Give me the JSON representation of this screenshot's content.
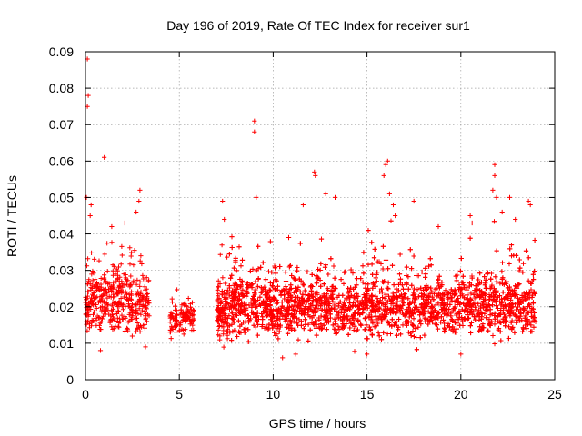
{
  "chart_data": {
    "type": "scatter",
    "title": "Day 196 of 2019, Rate Of TEC Index for receiver sur1",
    "xlabel": "GPS time / hours",
    "ylabel": "ROTI / TECUs",
    "xlim": [
      0,
      25
    ],
    "ylim": [
      0,
      0.09
    ],
    "x_ticks": [
      "0",
      "5",
      "10",
      "15",
      "20",
      "25"
    ],
    "y_ticks": [
      "0",
      "0.01",
      "0.02",
      "0.03",
      "0.04",
      "0.05",
      "0.06",
      "0.07",
      "0.08",
      "0.09"
    ],
    "grid": true,
    "marker": "+",
    "color": "#ff0000",
    "clusters": [
      {
        "x_range": [
          0.0,
          3.4
        ],
        "y_center": 0.021,
        "y_spread": 0.007,
        "count": 420
      },
      {
        "x_range": [
          4.5,
          4.9
        ],
        "y_center": 0.016,
        "y_spread": 0.004,
        "count": 45
      },
      {
        "x_range": [
          5.0,
          5.8
        ],
        "y_center": 0.017,
        "y_spread": 0.004,
        "count": 80
      },
      {
        "x_range": [
          7.0,
          7.6
        ],
        "y_center": 0.019,
        "y_spread": 0.006,
        "count": 120
      },
      {
        "x_range": [
          7.6,
          24.0
        ],
        "y_center": 0.02,
        "y_spread": 0.007,
        "count": 3600
      }
    ],
    "outliers": [
      [
        0.1,
        0.088
      ],
      [
        0.15,
        0.078
      ],
      [
        0.1,
        0.075
      ],
      [
        0.05,
        0.05
      ],
      [
        0.3,
        0.048
      ],
      [
        0.25,
        0.045
      ],
      [
        1.0,
        0.061
      ],
      [
        2.9,
        0.052
      ],
      [
        2.85,
        0.049
      ],
      [
        2.7,
        0.046
      ],
      [
        2.1,
        0.043
      ],
      [
        1.4,
        0.042
      ],
      [
        9.0,
        0.071
      ],
      [
        9.0,
        0.068
      ],
      [
        9.1,
        0.05
      ],
      [
        7.3,
        0.049
      ],
      [
        7.4,
        0.044
      ],
      [
        12.2,
        0.057
      ],
      [
        12.25,
        0.056
      ],
      [
        12.8,
        0.051
      ],
      [
        13.3,
        0.05
      ],
      [
        11.6,
        0.048
      ],
      [
        16.1,
        0.06
      ],
      [
        16.0,
        0.059
      ],
      [
        15.9,
        0.056
      ],
      [
        16.2,
        0.051
      ],
      [
        16.4,
        0.048
      ],
      [
        16.5,
        0.045
      ],
      [
        17.5,
        0.049
      ],
      [
        18.8,
        0.042
      ],
      [
        20.5,
        0.045
      ],
      [
        20.6,
        0.043
      ],
      [
        21.8,
        0.059
      ],
      [
        21.8,
        0.056
      ],
      [
        21.7,
        0.052
      ],
      [
        21.9,
        0.05
      ],
      [
        22.6,
        0.05
      ],
      [
        23.6,
        0.049
      ],
      [
        23.7,
        0.048
      ],
      [
        22.2,
        0.046
      ],
      [
        22.9,
        0.044
      ],
      [
        0.8,
        0.008
      ],
      [
        3.2,
        0.009
      ],
      [
        10.5,
        0.006
      ],
      [
        11.2,
        0.007
      ],
      [
        15.0,
        0.007
      ],
      [
        20.0,
        0.007
      ]
    ]
  }
}
